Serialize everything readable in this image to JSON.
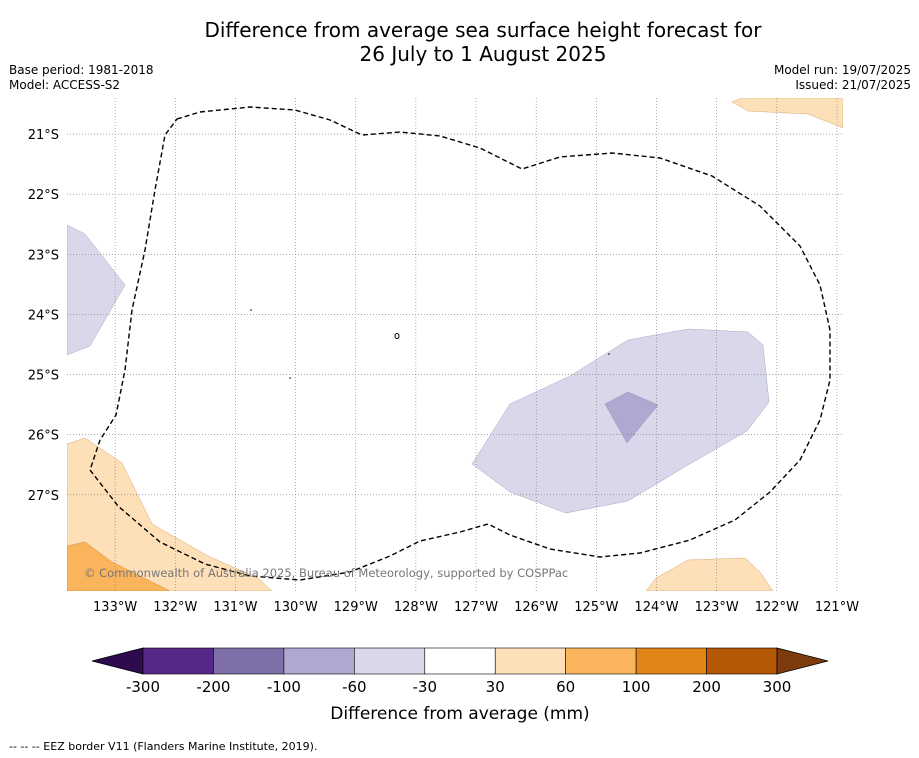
{
  "title": {
    "line1": "Difference from average sea surface height forecast for",
    "line2": "26 July to 1 August 2025"
  },
  "meta_left": {
    "base_period": "Base period: 1981-2018",
    "model": "Model: ACCESS-S2"
  },
  "meta_right": {
    "model_run": "Model run: 19/07/2025",
    "issued": "Issued: 21/07/2025"
  },
  "map": {
    "lon_labels": [
      "133°W",
      "132°W",
      "131°W",
      "130°W",
      "129°W",
      "128°W",
      "127°W",
      "126°W",
      "125°W",
      "124°W",
      "123°W",
      "122°W",
      "121°W"
    ],
    "lat_labels": [
      "21°S",
      "22°S",
      "23°S",
      "24°S",
      "25°S",
      "26°S",
      "27°S"
    ],
    "lon_range": [
      -133.8,
      -120.9
    ],
    "lat_range": [
      -28.6,
      -20.4
    ],
    "gridlines": true,
    "copyright": "© Commonwealth of Australia 2025, Bureau of Meteorology, supported by COSPPac",
    "anomaly_colors": {
      "minus_100_to_minus_60": "#b0a8d0",
      "minus_60_to_minus_30": "#d8d8ea",
      "plus_30_to_plus_60": "#fde0b8",
      "plus_60_to_plus_100": "#fab45c"
    }
  },
  "colorbar": {
    "label": "Difference from average (mm)",
    "ticks": [
      "-300",
      "-200",
      "-100",
      "-60",
      "-30",
      "30",
      "60",
      "100",
      "200",
      "300"
    ],
    "colors": [
      "#552888",
      "#8070aa",
      "#b0a8d0",
      "#d8d8ea",
      "#ffffff",
      "#fde0b8",
      "#fab45c",
      "#e28416",
      "#b45806"
    ],
    "under_color": "#2e0a4e",
    "over_color": "#7e3c0c"
  },
  "footnote": "--  --  -- EEZ border V11 (Flanders Marine Institute, 2019)."
}
